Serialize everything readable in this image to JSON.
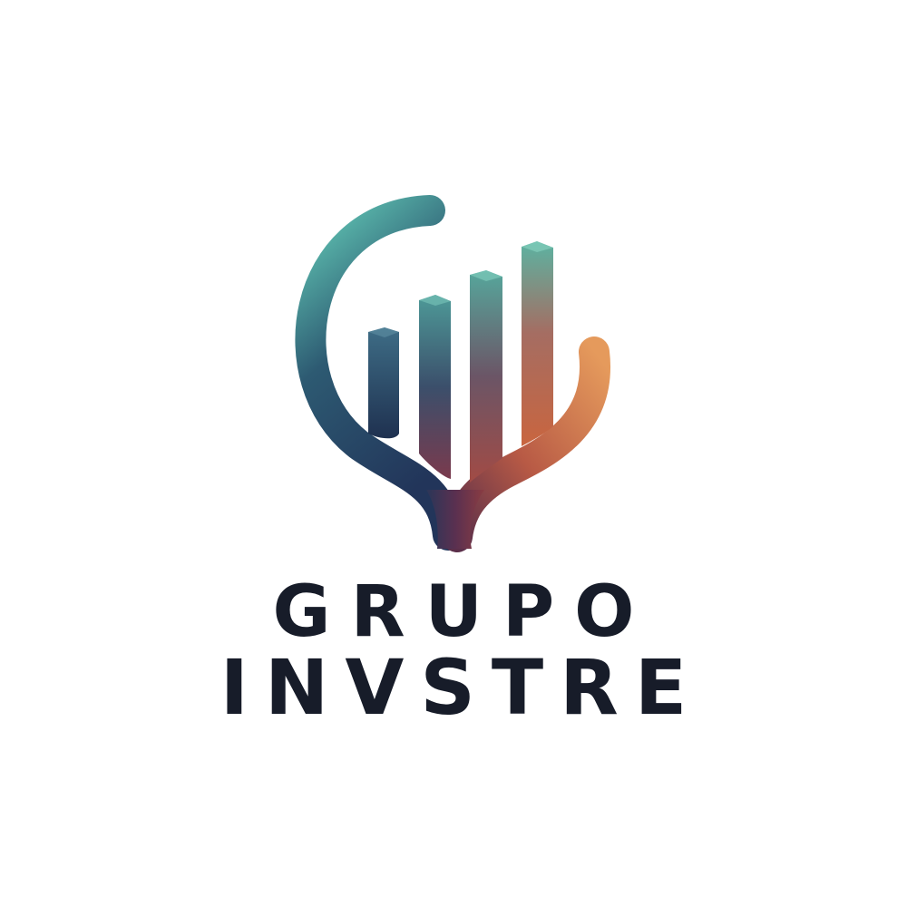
{
  "logo": {
    "name_line_1": "GRUPO",
    "name_line_2": "INVSTRE",
    "icon": "growth-bar-chart-tree-icon",
    "colors": {
      "background": "#ffffff",
      "text": "#171c29",
      "gradient_teal": "#5fc7b5",
      "gradient_navy": "#22385a",
      "gradient_plum": "#7c3a4a",
      "gradient_orange": "#df8a52"
    }
  }
}
